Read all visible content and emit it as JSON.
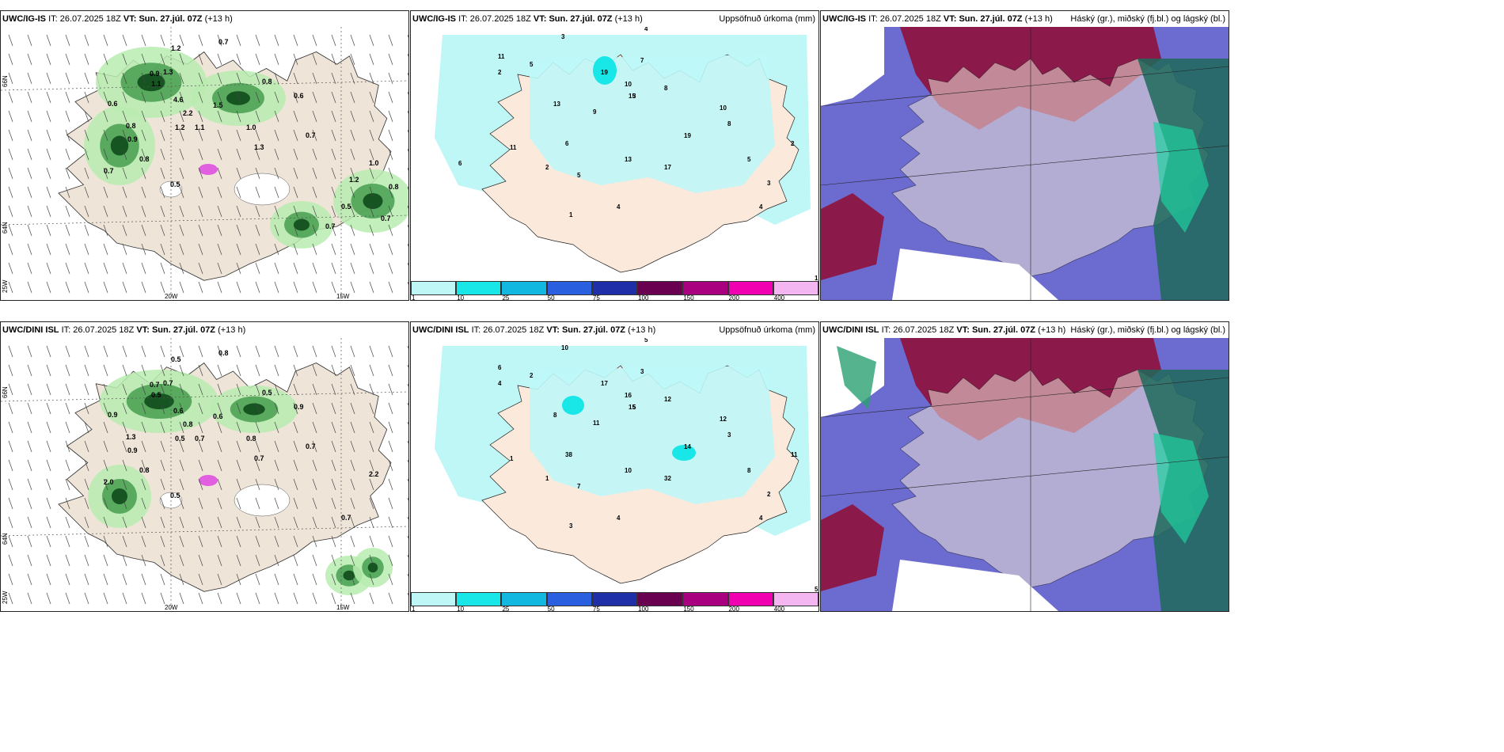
{
  "panels": {
    "top_left": {
      "model": "UWC/IG-IS",
      "it_label": "IT:",
      "it": "26.07.2025 18Z",
      "vt_label": "VT:",
      "vt": "Sun. 27.júl. 07Z",
      "lead": "(+13 h)"
    },
    "top_mid": {
      "model": "UWC/IG-IS",
      "it_label": "IT:",
      "it": "26.07.2025 18Z",
      "vt_label": "VT:",
      "vt": "Sun. 27.júl. 07Z",
      "lead": "(+13 h)",
      "product": "Uppsöfnuð úrkoma (mm)"
    },
    "top_right": {
      "model": "UWC/IG-IS",
      "it_label": "IT:",
      "it": "26.07.2025 18Z",
      "vt_label": "VT:",
      "vt": "Sun. 27.júl. 07Z",
      "lead": "(+13 h)",
      "product": "Háský (gr.), miðský (fj.bl.) og lágský (bl.)"
    },
    "bot_left": {
      "model": "UWC/DINI ISL",
      "it_label": "IT:",
      "it": "26.07.2025 18Z",
      "vt_label": "VT:",
      "vt": "Sun. 27.júl. 07Z",
      "lead": "(+13 h)"
    },
    "bot_mid": {
      "model": "UWC/DINI ISL",
      "it_label": "IT:",
      "it": "26.07.2025 18Z",
      "vt_label": "VT:",
      "vt": "Sun. 27.júl. 07Z",
      "lead": "(+13 h)",
      "product": "Uppsöfnuð úrkoma (mm)"
    },
    "bot_right": {
      "model": "UWC/DINI ISL",
      "it_label": "IT:",
      "it": "26.07.2025 18Z",
      "vt_label": "VT:",
      "vt": "Sun. 27.júl. 07Z",
      "lead": "(+13 h)",
      "product": "Háský (gr.), miðský (fj.bl.) og lágský (bl.)"
    }
  },
  "axes": {
    "lat_66": "66N",
    "lat_64": "64N",
    "lon_25": "25W",
    "lon_20": "20W",
    "lon_15": "15W"
  },
  "legend": {
    "colors": [
      "#bff7f7",
      "#19e6e6",
      "#12b8e0",
      "#2a5fe0",
      "#1e2fa8",
      "#6a0050",
      "#a8007e",
      "#f000b0",
      "#f3b6f0"
    ],
    "ticks": [
      "1",
      "10",
      "25",
      "50",
      "75",
      "100",
      "150",
      "200",
      "400"
    ]
  },
  "labels": {
    "top_left": [
      "1.2",
      "0.7",
      "0.9",
      "1.1",
      "1.3",
      "0.6",
      "0.8",
      "1.5",
      "1.0",
      "0.7",
      "4.6",
      "2.2",
      "1.2",
      "1.1",
      "0.9",
      "0.8",
      "0.5",
      "1.3",
      "0.8",
      "0.6",
      "0.7",
      "1.0",
      "0.5",
      "0.7",
      "0.8",
      "1.2",
      "0.7"
    ],
    "top_mid": [
      "3",
      "4",
      "2",
      "5",
      "7",
      "11",
      "19",
      "10",
      "15",
      "8",
      "9",
      "13",
      "19",
      "6",
      "17",
      "3",
      "5",
      "2",
      "1",
      "4",
      "13",
      "10",
      "5",
      "2",
      "3",
      "8",
      "4",
      "1",
      "11",
      "6"
    ],
    "bot_left": [
      "0.5",
      "0.8",
      "0.7",
      "0.5",
      "0.7",
      "0.9",
      "1.3",
      "0.6",
      "0.8",
      "2.0",
      "0.6",
      "0.8",
      "0.5",
      "0.7",
      "0.9",
      "0.8",
      "0.5",
      "0.7",
      "0.5",
      "0.9",
      "0.7",
      "2.2",
      "0.7"
    ],
    "bot_mid": [
      "10",
      "5",
      "4",
      "2",
      "3",
      "6",
      "17",
      "16",
      "15",
      "12",
      "11",
      "8",
      "14",
      "38",
      "32",
      "5",
      "7",
      "1",
      "3",
      "4",
      "10",
      "12",
      "8",
      "11",
      "2",
      "3",
      "4",
      "5",
      "1"
    ]
  }
}
